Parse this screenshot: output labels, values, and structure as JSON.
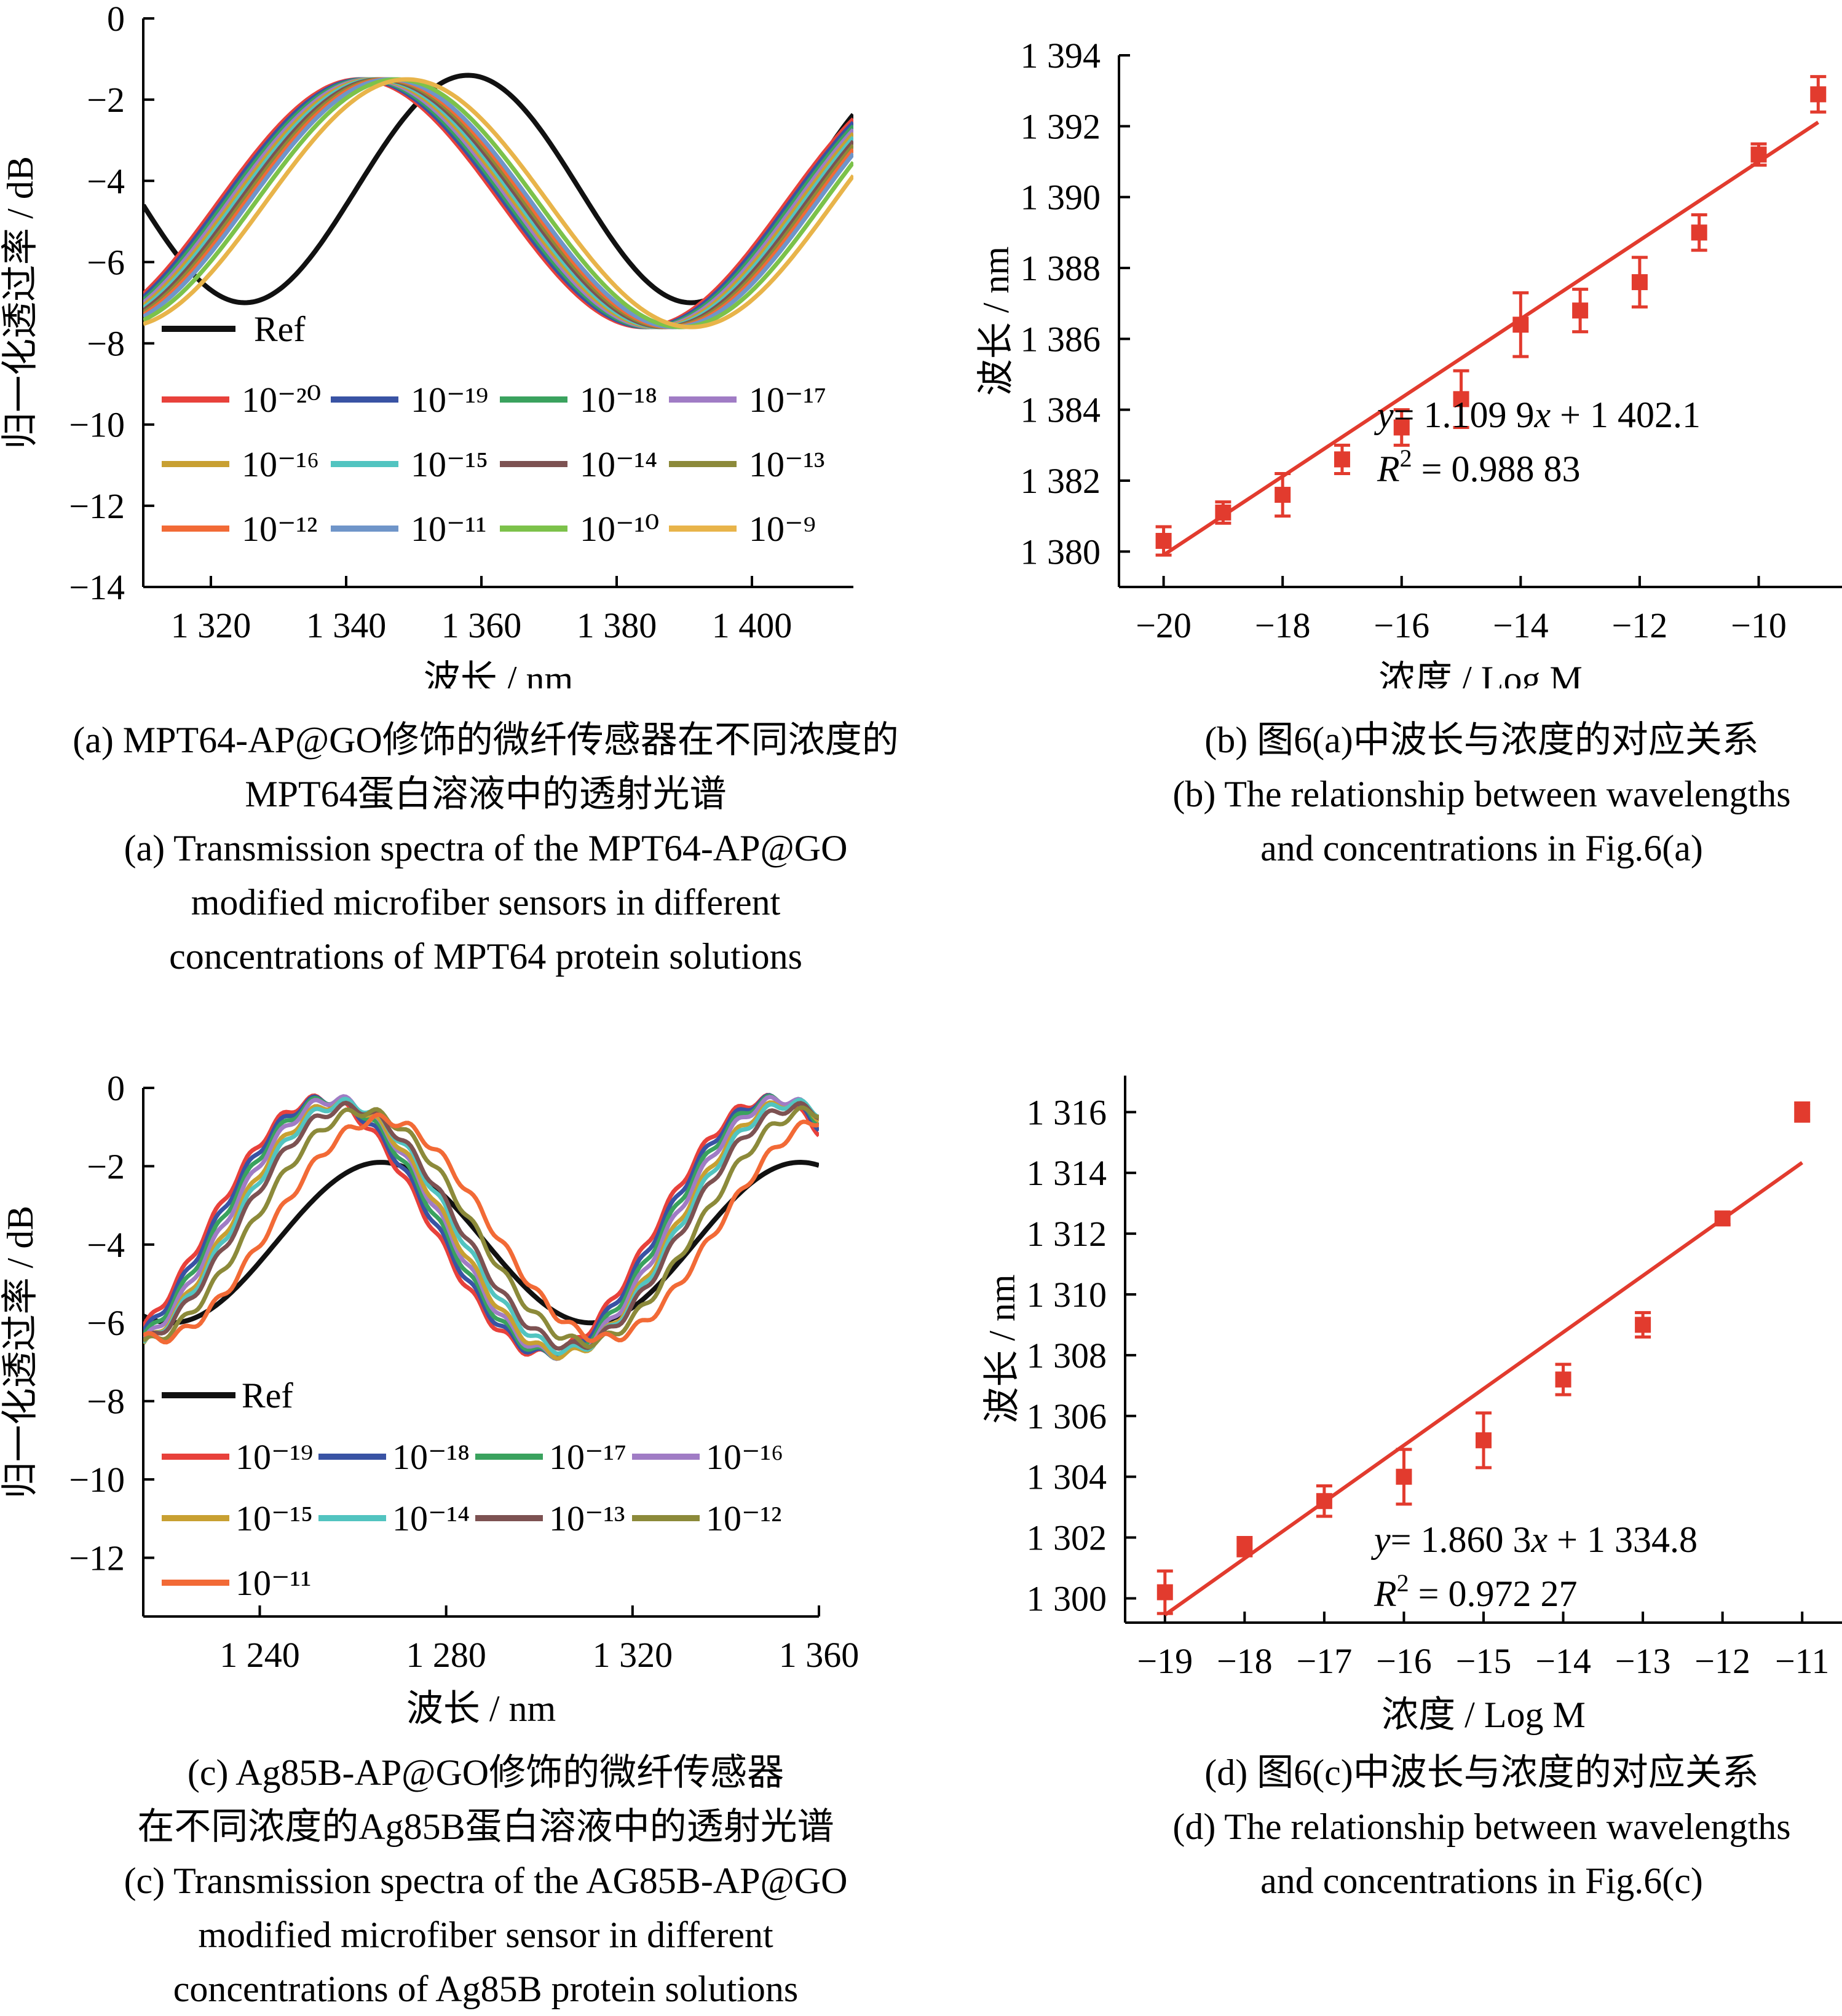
{
  "chart_data": [
    {
      "id": "a",
      "type": "line",
      "xlabel": "波长 / nm",
      "ylabel": "归一化透过率 / dB",
      "xlim": [
        1310,
        1415
      ],
      "ylim": [
        -14,
        0
      ],
      "x_ticks": [
        1320,
        1340,
        1360,
        1380,
        1400
      ],
      "x_tick_labels": [
        "1 320",
        "1 340",
        "1 360",
        "1 380",
        "1 400"
      ],
      "y_ticks": [
        0,
        -2,
        -4,
        -6,
        -8,
        -10,
        -12,
        -14
      ],
      "y_tick_labels": [
        "0",
        "−2",
        "−4",
        "−6",
        "−8",
        "−10",
        "−12",
        "−14"
      ],
      "legend": "lower-left",
      "series": [
        {
          "name": "Ref",
          "color": "#111111",
          "dip_nm": 1391,
          "min_db": -7.0,
          "max_db": -1.4,
          "period_nm": 66
        },
        {
          "name": "10⁻²⁰",
          "color": "#e8413b",
          "dip_nm": 1384,
          "min_db": -7.6,
          "max_db": -1.5,
          "period_nm": 84
        },
        {
          "name": "10⁻¹⁹",
          "color": "#3953a4",
          "dip_nm": 1384.5,
          "min_db": -7.6,
          "max_db": -1.5,
          "period_nm": 84
        },
        {
          "name": "10⁻¹⁸",
          "color": "#3aa25e",
          "dip_nm": 1385,
          "min_db": -7.6,
          "max_db": -1.5,
          "period_nm": 84
        },
        {
          "name": "10⁻¹⁷",
          "color": "#a07cc5",
          "dip_nm": 1385.5,
          "min_db": -7.6,
          "max_db": -1.5,
          "period_nm": 84
        },
        {
          "name": "10⁻¹⁶",
          "color": "#c8a032",
          "dip_nm": 1386,
          "min_db": -7.6,
          "max_db": -1.5,
          "period_nm": 84
        },
        {
          "name": "10⁻¹⁵",
          "color": "#52c4c0",
          "dip_nm": 1386.5,
          "min_db": -7.6,
          "max_db": -1.5,
          "period_nm": 84
        },
        {
          "name": "10⁻¹⁴",
          "color": "#7d5252",
          "dip_nm": 1387,
          "min_db": -7.6,
          "max_db": -1.5,
          "period_nm": 84
        },
        {
          "name": "10⁻¹³",
          "color": "#8c8a3a",
          "dip_nm": 1387.5,
          "min_db": -7.6,
          "max_db": -1.5,
          "period_nm": 84
        },
        {
          "name": "10⁻¹²",
          "color": "#f26a36",
          "dip_nm": 1388,
          "min_db": -7.6,
          "max_db": -1.5,
          "period_nm": 84
        },
        {
          "name": "10⁻¹¹",
          "color": "#6f95c9",
          "dip_nm": 1388.5,
          "min_db": -7.6,
          "max_db": -1.5,
          "period_nm": 84
        },
        {
          "name": "10⁻¹⁰",
          "color": "#7cc24a",
          "dip_nm": 1389.5,
          "min_db": -7.6,
          "max_db": -1.5,
          "period_nm": 84
        },
        {
          "name": "10⁻⁹",
          "color": "#e8b44a",
          "dip_nm": 1391,
          "min_db": -7.6,
          "max_db": -1.5,
          "period_nm": 84
        }
      ]
    },
    {
      "id": "b",
      "type": "scatter",
      "xlabel": "浓度 / Log M",
      "ylabel": "波长 / nm",
      "xlim": [
        -20.75,
        -8.6
      ],
      "ylim": [
        1379,
        1394
      ],
      "x_ticks": [
        -20,
        -18,
        -16,
        -14,
        -12,
        -10
      ],
      "x_tick_labels": [
        "−20",
        "−18",
        "−16",
        "−14",
        "−12",
        "−10"
      ],
      "y_ticks": [
        1380,
        1382,
        1384,
        1386,
        1388,
        1390,
        1392,
        1394
      ],
      "y_tick_labels": [
        "1 380",
        "1 382",
        "1 384",
        "1 386",
        "1 388",
        "1 390",
        "1 392",
        "1 394"
      ],
      "point_color": "#e23b2e",
      "points": [
        {
          "x": -20,
          "y": 1380.3,
          "err": 0.4
        },
        {
          "x": -19,
          "y": 1381.1,
          "err": 0.3
        },
        {
          "x": -18,
          "y": 1381.6,
          "err": 0.6
        },
        {
          "x": -17,
          "y": 1382.6,
          "err": 0.4
        },
        {
          "x": -16,
          "y": 1383.5,
          "err": 0.5
        },
        {
          "x": -15,
          "y": 1384.3,
          "err": 0.8
        },
        {
          "x": -14,
          "y": 1386.4,
          "err": 0.9
        },
        {
          "x": -13,
          "y": 1386.8,
          "err": 0.6
        },
        {
          "x": -12,
          "y": 1387.6,
          "err": 0.7
        },
        {
          "x": -11,
          "y": 1389.0,
          "err": 0.5
        },
        {
          "x": -10,
          "y": 1391.2,
          "err": 0.3
        },
        {
          "x": -9,
          "y": 1392.9,
          "err": 0.5
        }
      ],
      "fit": {
        "slope": 1.1099,
        "intercept": 1402.1,
        "x_range": [
          -20,
          -9
        ]
      },
      "equation": "= 1.109 9",
      "equation_tail": " + 1 402.1",
      "r2": "= 0.988 83"
    },
    {
      "id": "c",
      "type": "line",
      "xlabel": "波长 / nm",
      "ylabel": "归一化透过率 / dB",
      "xlim": [
        1215,
        1360
      ],
      "ylim": [
        -13.5,
        0
      ],
      "x_ticks": [
        1240,
        1280,
        1320,
        1360
      ],
      "x_tick_labels": [
        "1 240",
        "1 280",
        "1 320",
        "1 360"
      ],
      "y_ticks": [
        0,
        -2,
        -4,
        -6,
        -8,
        -10,
        -12
      ],
      "y_tick_labels": [
        "0",
        "−2",
        "−4",
        "−6",
        "−8",
        "−10",
        "−12"
      ],
      "legend": "lower-left",
      "series": [
        {
          "name": "Ref",
          "color": "#111111",
          "dip_nm": 1311,
          "min_db": -6.0,
          "max_db": -1.9,
          "period_nm": 90
        },
        {
          "name": "10⁻¹⁹",
          "color": "#e8413b",
          "dip_nm": 1301,
          "min_db": -6.8,
          "max_db": -0.3,
          "period_nm": 96
        },
        {
          "name": "10⁻¹⁸",
          "color": "#3953a4",
          "dip_nm": 1302,
          "min_db": -6.8,
          "max_db": -0.3,
          "period_nm": 96
        },
        {
          "name": "10⁻¹⁷",
          "color": "#3aa25e",
          "dip_nm": 1303,
          "min_db": -6.8,
          "max_db": -0.3,
          "period_nm": 96
        },
        {
          "name": "10⁻¹⁶",
          "color": "#a07cc5",
          "dip_nm": 1304,
          "min_db": -6.8,
          "max_db": -0.3,
          "period_nm": 96
        },
        {
          "name": "10⁻¹⁵",
          "color": "#c8a032",
          "dip_nm": 1305,
          "min_db": -6.8,
          "max_db": -0.4,
          "period_nm": 96
        },
        {
          "name": "10⁻¹⁴",
          "color": "#52c4c0",
          "dip_nm": 1306,
          "min_db": -6.7,
          "max_db": -0.4,
          "period_nm": 96
        },
        {
          "name": "10⁻¹³",
          "color": "#7d5252",
          "dip_nm": 1307,
          "min_db": -6.6,
          "max_db": -0.5,
          "period_nm": 96
        },
        {
          "name": "10⁻¹²",
          "color": "#8c8a3a",
          "dip_nm": 1310,
          "min_db": -6.5,
          "max_db": -0.6,
          "period_nm": 96
        },
        {
          "name": "10⁻¹¹",
          "color": "#f26a36",
          "dip_nm": 1314,
          "min_db": -6.4,
          "max_db": -0.8,
          "period_nm": 96
        }
      ]
    },
    {
      "id": "d",
      "type": "scatter",
      "xlabel": "浓度 / Log M",
      "ylabel": "波长 / nm",
      "xlim": [
        -19.5,
        -10.5
      ],
      "ylim": [
        1299.2,
        1317.2
      ],
      "x_ticks": [
        -19,
        -18,
        -17,
        -16,
        -15,
        -14,
        -13,
        -12,
        -11
      ],
      "x_tick_labels": [
        "−19",
        "−18",
        "−17",
        "−16",
        "−15",
        "−14",
        "−13",
        "−12",
        "−11"
      ],
      "y_ticks": [
        1300,
        1302,
        1304,
        1306,
        1308,
        1310,
        1312,
        1314,
        1316
      ],
      "y_tick_labels": [
        "1 300",
        "1 302",
        "1 304",
        "1 306",
        "1 308",
        "1 310",
        "1 312",
        "1 314",
        "1 316"
      ],
      "point_color": "#e23b2e",
      "points": [
        {
          "x": -19,
          "y": 1300.2,
          "err": 0.7
        },
        {
          "x": -18,
          "y": 1301.7,
          "err": 0.3
        },
        {
          "x": -17,
          "y": 1303.2,
          "err": 0.5
        },
        {
          "x": -16,
          "y": 1304.0,
          "err": 0.9
        },
        {
          "x": -15,
          "y": 1305.2,
          "err": 0.9
        },
        {
          "x": -14,
          "y": 1307.2,
          "err": 0.5
        },
        {
          "x": -13,
          "y": 1309.0,
          "err": 0.4
        },
        {
          "x": -12,
          "y": 1312.5,
          "err": 0.2
        },
        {
          "x": -11,
          "y": 1316.0,
          "err": 0.3
        }
      ],
      "fit": {
        "slope": 1.8603,
        "intercept": 1334.8,
        "x_range": [
          -19,
          -11
        ]
      },
      "equation": "= 1.860 3",
      "equation_tail": " + 1 334.8",
      "r2": "= 0.972 27"
    }
  ],
  "captions": {
    "a": [
      "(a) MPT64-AP@GO修饰的微纤传感器在不同浓度的",
      "MPT64蛋白溶液中的透射光谱",
      "(a) Transmission spectra of the MPT64-AP@GO",
      "modified microfiber sensors in different",
      "concentrations of MPT64 protein solutions"
    ],
    "b": [
      "(b) 图6(a)中波长与浓度的对应关系",
      "(b) The relationship between wavelengths",
      "and concentrations in Fig.6(a)"
    ],
    "c": [
      "(c) Ag85B-AP@GO修饰的微纤传感器",
      "在不同浓度的Ag85B蛋白溶液中的透射光谱",
      "(c) Transmission spectra of the AG85B-AP@GO",
      "modified microfiber sensor in different",
      "concentrations of Ag85B protein solutions"
    ],
    "d": [
      "(d) 图6(c)中波长与浓度的对应关系",
      "(d) The relationship between wavelengths",
      "and concentrations in Fig.6(c)"
    ]
  }
}
